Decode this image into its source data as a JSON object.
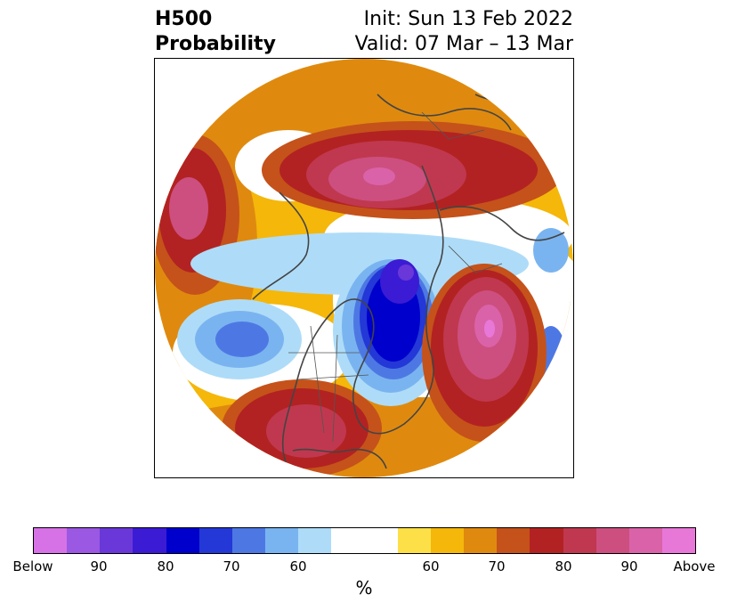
{
  "title": {
    "left_line1": "H500",
    "left_line2": "Probability",
    "right_line1": "Init: Sun 13 Feb 2022",
    "right_line2": "Valid: 07 Mar – 13 Mar"
  },
  "colorbar": {
    "colors": [
      "#d672e6",
      "#9b58e2",
      "#6a38d8",
      "#3b1bd4",
      "#0000cc",
      "#2338d6",
      "#4d78e4",
      "#7ab4f0",
      "#aedcf8",
      "#ffffff",
      "#ffffff",
      "#fde047",
      "#f5b70a",
      "#df8a0f",
      "#c5521a",
      "#b22222",
      "#c0384f",
      "#cc4f7f",
      "#da62a8",
      "#e878d8"
    ],
    "tick_labels": [
      "Below",
      "90",
      "80",
      "70",
      "60",
      "",
      "60",
      "70",
      "80",
      "90",
      "Above"
    ],
    "unit_label": "%"
  },
  "map": {
    "projection": "north-polar stereographic",
    "anomalies": [
      {
        "region": "North Pacific",
        "sign": "above",
        "max_percent": 90
      },
      {
        "region": "Eastern Pacific (off California)",
        "sign": "below",
        "max_percent": 70
      },
      {
        "region": "Canadian Arctic / Baffin / Hudson Bay",
        "sign": "below",
        "max_percent": 90
      },
      {
        "region": "Southwestern United States",
        "sign": "above",
        "max_percent": 80
      },
      {
        "region": "North Atlantic",
        "sign": "above",
        "max_percent": 90
      },
      {
        "region": "Northern Russia / Siberia",
        "sign": "above",
        "max_percent": 90
      },
      {
        "region": "Western Europe",
        "sign": "below",
        "max_percent": 60
      }
    ]
  }
}
